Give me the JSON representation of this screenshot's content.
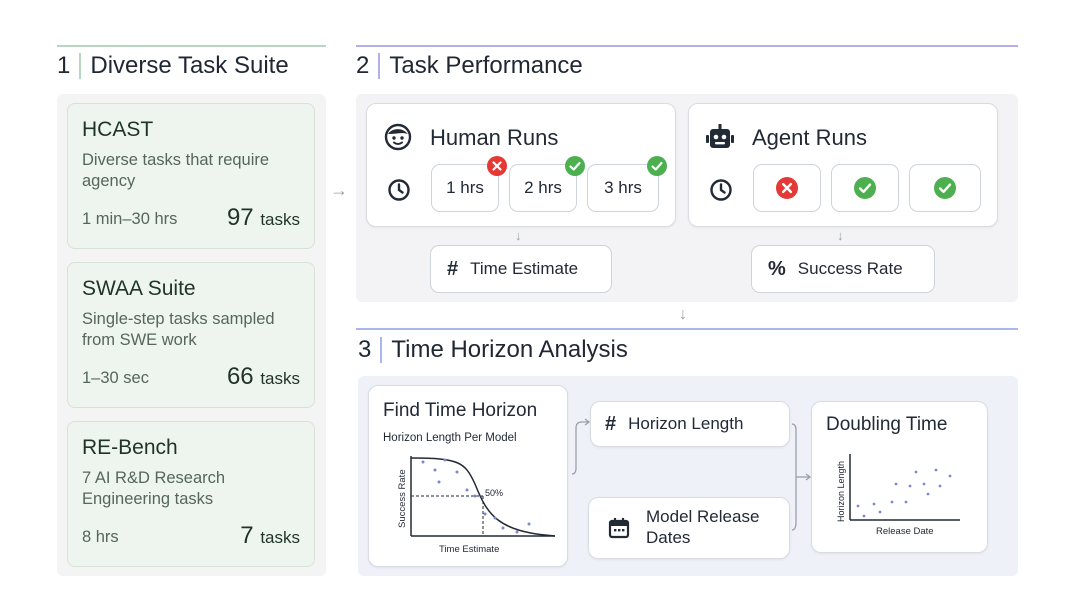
{
  "sections": {
    "s1": {
      "num": "1",
      "title": "Diverse Task Suite",
      "color": "#b9d6c2"
    },
    "s2": {
      "num": "2",
      "title": "Task Performance",
      "color": "#b3b0e6"
    },
    "s3": {
      "num": "3",
      "title": "Time Horizon Analysis",
      "color": "#a8b8ef"
    }
  },
  "suites": [
    {
      "title": "HCAST",
      "desc": "Diverse tasks that require agency",
      "range": "1 min–30 hrs",
      "count": "97",
      "unit": "tasks"
    },
    {
      "title": "SWAA Suite",
      "desc": "Single-step tasks sampled from SWE work",
      "range": "1–30 sec",
      "count": "66",
      "unit": "tasks"
    },
    {
      "title": "RE-Bench",
      "desc": "7 AI R&D Research Engineering tasks",
      "range": "8 hrs",
      "count": "7",
      "unit": "tasks"
    }
  ],
  "human_runs": {
    "title": "Human Runs",
    "icon": "human-face-icon",
    "runs": [
      {
        "label": "1 hrs",
        "status": "fail"
      },
      {
        "label": "2 hrs",
        "status": "success"
      },
      {
        "label": "3 hrs",
        "status": "success"
      }
    ]
  },
  "agent_runs": {
    "title": "Agent Runs",
    "icon": "robot-icon",
    "runs": [
      {
        "status": "fail"
      },
      {
        "status": "success"
      },
      {
        "status": "success"
      }
    ]
  },
  "time_estimate": {
    "symbol": "#",
    "label": "Time Estimate"
  },
  "success_rate": {
    "symbol": "%",
    "label": "Success Rate"
  },
  "find_horizon": {
    "title": "Find Time Horizon",
    "subtitle": "Horizon Length Per Model",
    "ylabel": "Success Rate",
    "xlabel": "Time Estimate",
    "marker": "50%"
  },
  "horizon_length": {
    "symbol": "#",
    "label": "Horizon Length"
  },
  "release_dates": {
    "label": "Model Release Dates"
  },
  "doubling": {
    "title": "Doubling Time",
    "ylabel": "Horizon Length",
    "xlabel": "Release Date"
  },
  "colors": {
    "success": "#4caf50",
    "fail": "#e53935",
    "scatter": "#7b87d8",
    "panel2": "#f3f3f5",
    "panel3": "#eef1f8",
    "panel1": "#f3f4f3"
  }
}
